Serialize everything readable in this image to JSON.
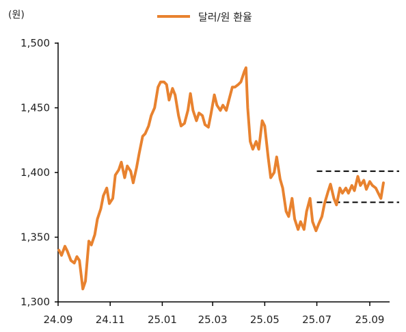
{
  "chart_data": {
    "type": "line",
    "unit_label": "(원)",
    "title": "",
    "xlabel": "",
    "ylabel": "",
    "ylim": [
      1300,
      1500
    ],
    "y_ticks": [
      "1,300",
      "1,350",
      "1,400",
      "1,450",
      "1,500"
    ],
    "x_ticks": [
      "24.09",
      "24.11",
      "25.01",
      "25.03",
      "25.05",
      "25.07",
      "25.09"
    ],
    "grid": false,
    "legend_position": "top-center",
    "series": [
      {
        "name": "달러/원 환율",
        "color": "#E8822F",
        "points": [
          [
            "2024-09-02",
            1340
          ],
          [
            "2024-09-05",
            1336
          ],
          [
            "2024-09-09",
            1343
          ],
          [
            "2024-09-12",
            1339
          ],
          [
            "2024-09-16",
            1332
          ],
          [
            "2024-09-20",
            1330
          ],
          [
            "2024-09-23",
            1335
          ],
          [
            "2024-09-26",
            1332
          ],
          [
            "2024-09-30",
            1310
          ],
          [
            "2024-10-03",
            1316
          ],
          [
            "2024-10-07",
            1347
          ],
          [
            "2024-10-10",
            1344
          ],
          [
            "2024-10-14",
            1352
          ],
          [
            "2024-10-17",
            1364
          ],
          [
            "2024-10-21",
            1372
          ],
          [
            "2024-10-24",
            1382
          ],
          [
            "2024-10-28",
            1388
          ],
          [
            "2024-10-31",
            1376
          ],
          [
            "2024-11-04",
            1380
          ],
          [
            "2024-11-07",
            1398
          ],
          [
            "2024-11-11",
            1402
          ],
          [
            "2024-11-14",
            1408
          ],
          [
            "2024-11-18",
            1396
          ],
          [
            "2024-11-21",
            1405
          ],
          [
            "2024-11-25",
            1401
          ],
          [
            "2024-11-28",
            1392
          ],
          [
            "2024-12-02",
            1404
          ],
          [
            "2024-12-05",
            1415
          ],
          [
            "2024-12-09",
            1428
          ],
          [
            "2024-12-12",
            1430
          ],
          [
            "2024-12-16",
            1436
          ],
          [
            "2024-12-19",
            1444
          ],
          [
            "2024-12-23",
            1450
          ],
          [
            "2024-12-27",
            1466
          ],
          [
            "2024-12-30",
            1470
          ],
          [
            "2025-01-03",
            1470
          ],
          [
            "2025-01-06",
            1468
          ],
          [
            "2025-01-09",
            1456
          ],
          [
            "2025-01-13",
            1465
          ],
          [
            "2025-01-16",
            1460
          ],
          [
            "2025-01-20",
            1444
          ],
          [
            "2025-01-23",
            1436
          ],
          [
            "2025-01-27",
            1438
          ],
          [
            "2025-01-31",
            1448
          ],
          [
            "2025-02-03",
            1461
          ],
          [
            "2025-02-06",
            1448
          ],
          [
            "2025-02-10",
            1440
          ],
          [
            "2025-02-13",
            1446
          ],
          [
            "2025-02-17",
            1444
          ],
          [
            "2025-02-20",
            1437
          ],
          [
            "2025-02-24",
            1435
          ],
          [
            "2025-02-27",
            1445
          ],
          [
            "2025-03-03",
            1460
          ],
          [
            "2025-03-06",
            1452
          ],
          [
            "2025-03-10",
            1448
          ],
          [
            "2025-03-13",
            1452
          ],
          [
            "2025-03-17",
            1448
          ],
          [
            "2025-03-20",
            1456
          ],
          [
            "2025-03-24",
            1466
          ],
          [
            "2025-03-27",
            1466
          ],
          [
            "2025-03-31",
            1468
          ],
          [
            "2025-04-03",
            1470
          ],
          [
            "2025-04-07",
            1478
          ],
          [
            "2025-04-09",
            1481
          ],
          [
            "2025-04-11",
            1450
          ],
          [
            "2025-04-14",
            1424
          ],
          [
            "2025-04-17",
            1418
          ],
          [
            "2025-04-21",
            1424
          ],
          [
            "2025-04-24",
            1418
          ],
          [
            "2025-04-28",
            1440
          ],
          [
            "2025-05-01",
            1436
          ],
          [
            "2025-05-05",
            1412
          ],
          [
            "2025-05-08",
            1396
          ],
          [
            "2025-05-12",
            1400
          ],
          [
            "2025-05-15",
            1412
          ],
          [
            "2025-05-19",
            1395
          ],
          [
            "2025-05-22",
            1388
          ],
          [
            "2025-05-26",
            1370
          ],
          [
            "2025-05-29",
            1366
          ],
          [
            "2025-06-02",
            1380
          ],
          [
            "2025-06-05",
            1364
          ],
          [
            "2025-06-09",
            1356
          ],
          [
            "2025-06-12",
            1362
          ],
          [
            "2025-06-16",
            1356
          ],
          [
            "2025-06-19",
            1370
          ],
          [
            "2025-06-23",
            1380
          ],
          [
            "2025-06-26",
            1362
          ],
          [
            "2025-06-30",
            1355
          ],
          [
            "2025-07-03",
            1360
          ],
          [
            "2025-07-07",
            1366
          ],
          [
            "2025-07-10",
            1376
          ],
          [
            "2025-07-14",
            1385
          ],
          [
            "2025-07-17",
            1391
          ],
          [
            "2025-07-21",
            1380
          ],
          [
            "2025-07-24",
            1375
          ],
          [
            "2025-07-28",
            1388
          ],
          [
            "2025-07-31",
            1384
          ],
          [
            "2025-08-04",
            1388
          ],
          [
            "2025-08-07",
            1384
          ],
          [
            "2025-08-11",
            1390
          ],
          [
            "2025-08-14",
            1386
          ],
          [
            "2025-08-18",
            1397
          ],
          [
            "2025-08-21",
            1390
          ],
          [
            "2025-08-25",
            1394
          ],
          [
            "2025-08-28",
            1387
          ],
          [
            "2025-09-01",
            1393
          ],
          [
            "2025-09-04",
            1390
          ],
          [
            "2025-09-08",
            1388
          ],
          [
            "2025-09-11",
            1384
          ],
          [
            "2025-09-14",
            1380
          ],
          [
            "2025-09-17",
            1392
          ]
        ]
      }
    ],
    "reference_lines": [
      {
        "y": 1401,
        "x_start": "2025-07-01",
        "style": "dashed",
        "color": "#000000"
      },
      {
        "y": 1377,
        "x_start": "2025-07-01",
        "style": "dashed",
        "color": "#000000"
      }
    ]
  }
}
